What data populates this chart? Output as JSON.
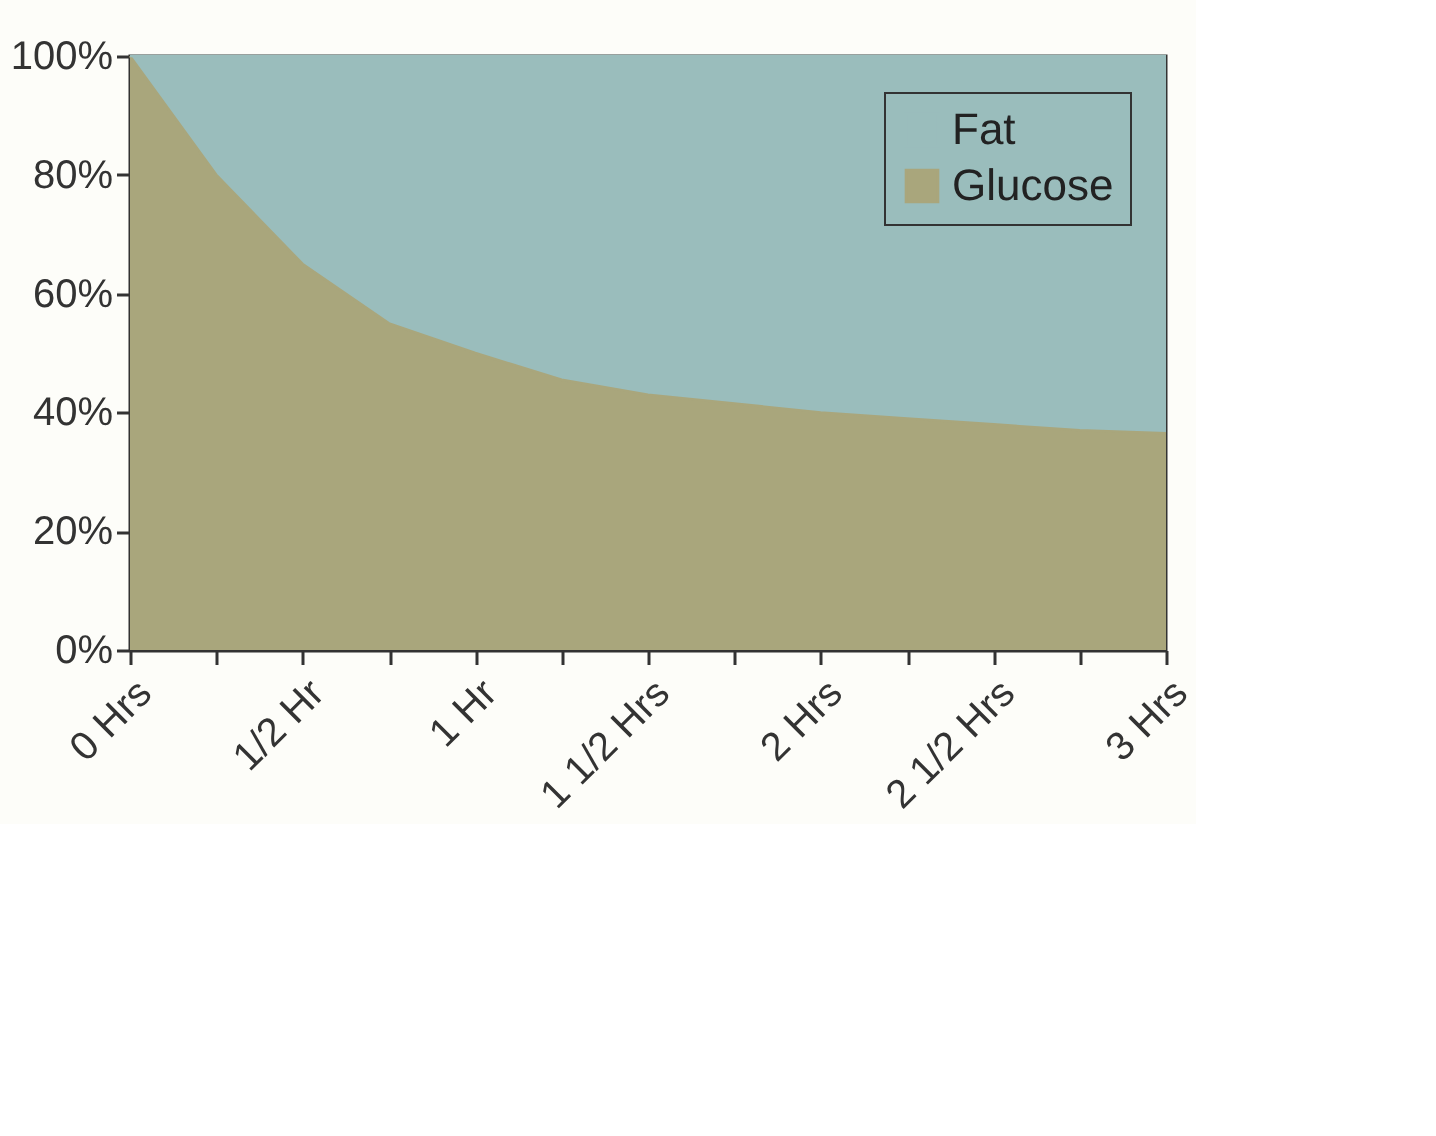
{
  "chart_data": {
    "type": "area",
    "stacked": true,
    "categories": [
      "0 Hrs",
      null,
      "1/2 Hr",
      null,
      "1 Hr",
      null,
      "1 1/2 Hrs",
      null,
      "2 Hrs",
      null,
      "2 1/2 Hrs",
      null,
      "3 Hrs"
    ],
    "series": [
      {
        "name": "Glucose",
        "color": "#a9a67c",
        "values": [
          100,
          80,
          65,
          55,
          50,
          45.5,
          43,
          41.5,
          40,
          39,
          38,
          37,
          36.5
        ]
      },
      {
        "name": "Fat",
        "color": "#9abdbc",
        "values": [
          0,
          20,
          35,
          45,
          50,
          54.5,
          57,
          58.5,
          60,
          61,
          62,
          63,
          63.5
        ]
      }
    ],
    "ylim": [
      0,
      100
    ],
    "yticks": [
      {
        "value": 0,
        "label": "0%"
      },
      {
        "value": 20,
        "label": "20%"
      },
      {
        "value": 40,
        "label": "40%"
      },
      {
        "value": 60,
        "label": "60%"
      },
      {
        "value": 80,
        "label": "80%"
      },
      {
        "value": 100,
        "label": "100%"
      }
    ],
    "grid": false,
    "legend": "top right"
  }
}
